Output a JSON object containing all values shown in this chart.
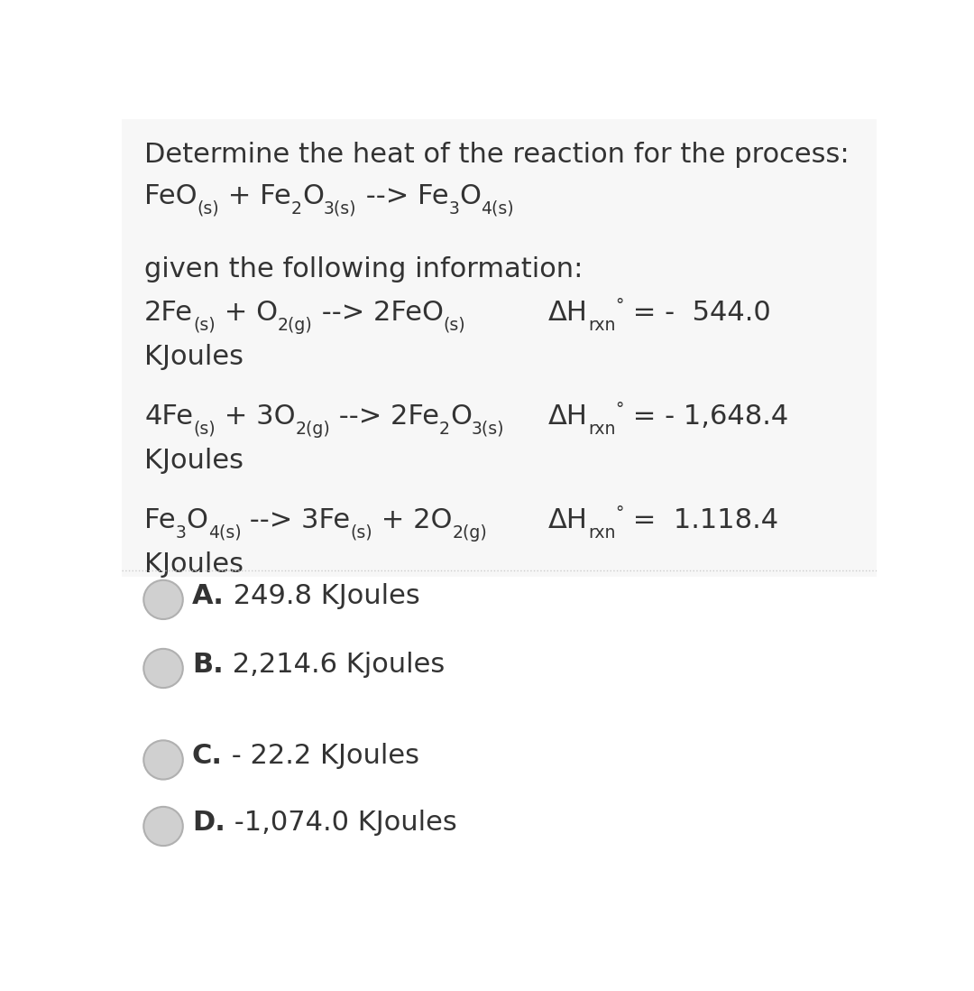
{
  "bg_color": "#ffffff",
  "text_color": "#333333",
  "title_line1": "Determine the heat of the reaction for the process:",
  "title_line3": "given the following information:",
  "reaction1_units": "KJoules",
  "reaction2_units": "KJoules",
  "reaction3_units": "KJoules",
  "choice_A_bold": "A.",
  "choice_A_rest": " 249.8 KJoules",
  "choice_B_bold": "B.",
  "choice_B_rest": " 2,214.6 Kjoules",
  "choice_C_bold": "C.",
  "choice_C_rest": " - 22.2 KJoules",
  "choice_D_bold": "D.",
  "choice_D_rest": " -1,074.0 KJoules",
  "circle_face_color": "#d0d0d0",
  "circle_edge_color": "#b0b0b0",
  "font_size_main": 22,
  "font_size_choice": 22,
  "divider_color": "#cccccc",
  "bg_top": "#f5f5f5",
  "bg_bottom": "#ffffff"
}
